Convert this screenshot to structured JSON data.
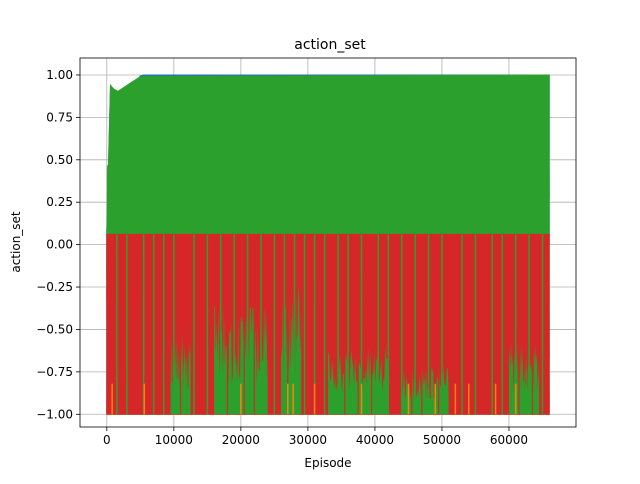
{
  "chart_data": {
    "type": "area",
    "title": "action_set",
    "xlabel": "Episode",
    "ylabel": "action_set",
    "xlim": [
      -4000,
      70000
    ],
    "ylim": [
      -1.075,
      1.1
    ],
    "xticks": [
      0,
      10000,
      20000,
      30000,
      40000,
      50000,
      60000
    ],
    "xtick_labels": [
      "0",
      "10000",
      "20000",
      "30000",
      "40000",
      "50000",
      "60000"
    ],
    "yticks": [
      -1.0,
      -0.75,
      -0.5,
      -0.25,
      0.0,
      0.25,
      0.5,
      0.75,
      1.0
    ],
    "ytick_labels": [
      "−1.00",
      "−0.75",
      "−0.50",
      "−0.25",
      "0.00",
      "0.25",
      "0.50",
      "0.75",
      "1.00"
    ],
    "grid": true,
    "legend": "none",
    "series": [
      {
        "color": "#1f77b4",
        "x_range": [
          0,
          66000
        ],
        "envelope": [
          [
            0,
            -1.0,
            0.06
          ],
          [
            500,
            0.0,
            0.95
          ],
          [
            1000,
            0.0,
            0.88
          ],
          [
            4000,
            0.0,
            0.88
          ],
          [
            5000,
            0.0,
            1.0
          ],
          [
            66000,
            0.0,
            1.0
          ]
        ]
      },
      {
        "color": "#ff7f0e",
        "x_range": [
          0,
          66000
        ],
        "envelope": [
          [
            0,
            -1.0,
            -0.95
          ],
          [
            66000,
            -1.0,
            -0.95
          ]
        ]
      },
      {
        "color": "#2ca02c",
        "x_range": [
          0,
          66000
        ],
        "envelope": [
          [
            0,
            -0.3,
            0.09
          ],
          [
            200,
            -1.0,
            0.95
          ],
          [
            1500,
            -1.0,
            0.9
          ],
          [
            5000,
            -1.0,
            0.99
          ],
          [
            66000,
            -1.0,
            1.0
          ]
        ]
      },
      {
        "color": "#d62728",
        "x_range": [
          0,
          66000
        ],
        "envelope": [
          [
            0,
            -1.0,
            0.06
          ],
          [
            66000,
            -1.0,
            0.06
          ]
        ]
      }
    ]
  }
}
